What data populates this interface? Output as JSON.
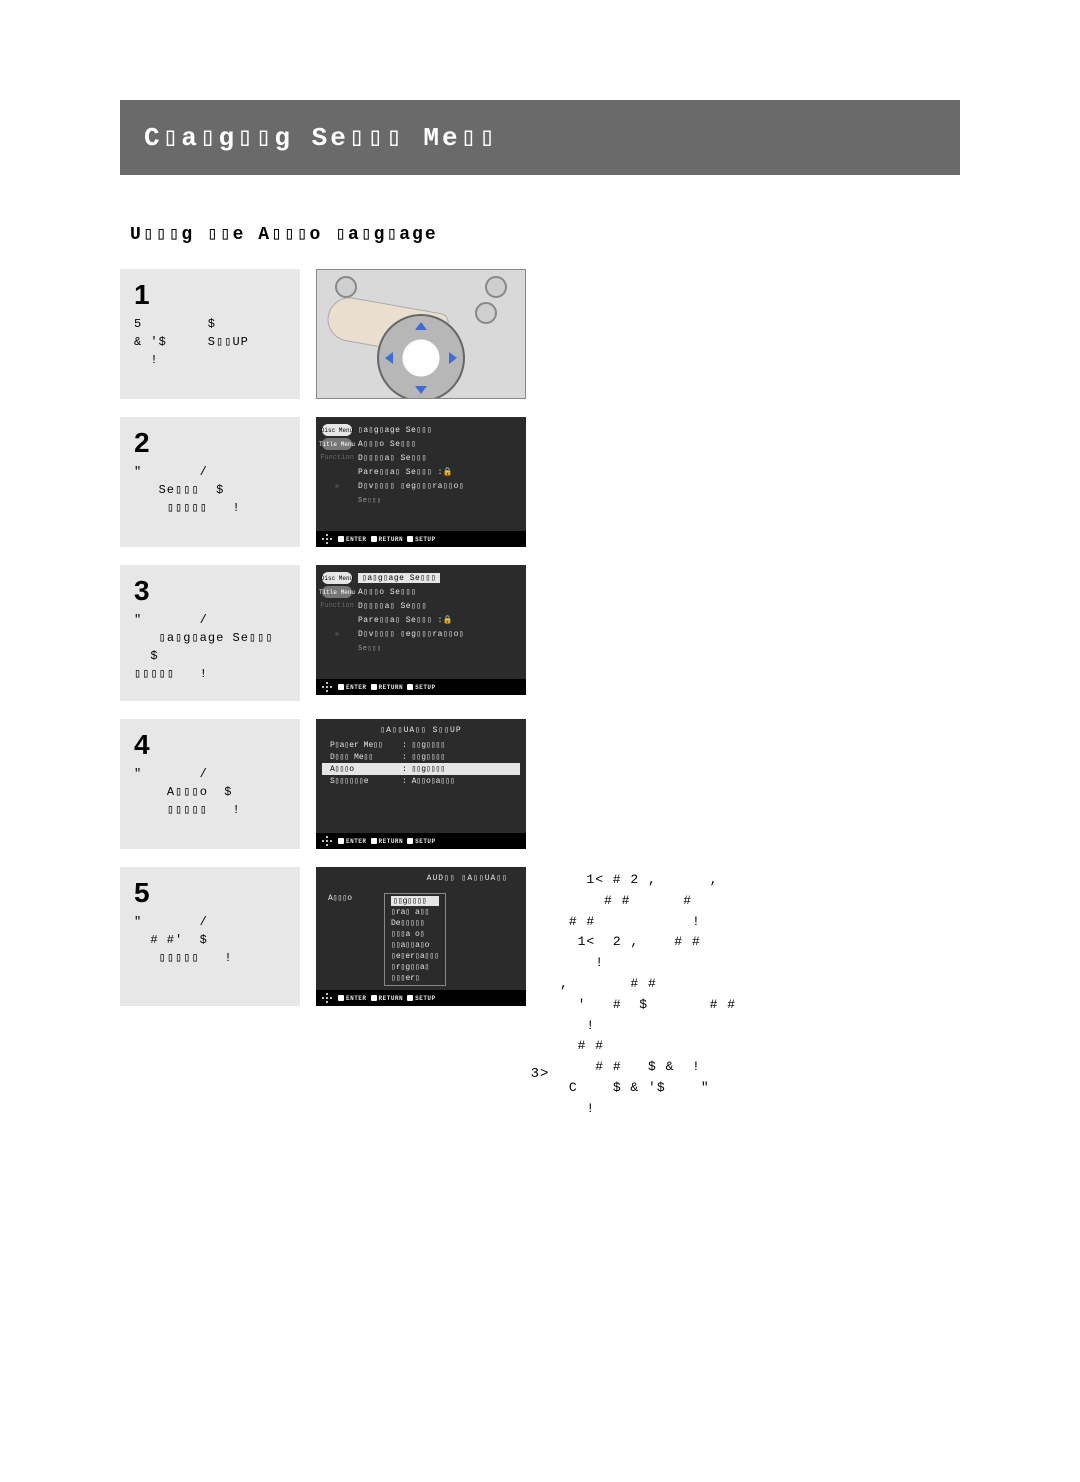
{
  "colors": {
    "titlebar_bg": "#6a6a6a",
    "titlebar_fg": "#ffffff",
    "panel_bg": "#e7e7e7",
    "osd_bg": "#2b2b2b",
    "osd_fg": "#e6e6e6",
    "osd_foot_bg": "#000000",
    "highlight_bg": "#e6e6e6",
    "highlight_fg": "#000000",
    "remote_bg": "#d9d9d9",
    "arrow_blue": "#3b6fd6"
  },
  "title": "C▯a▯g▯▯g Se▯▯▯ Me▯▯",
  "subtitle": "U▯▯▯g ▯▯e A▯▯▯o ▯a▯g▯age",
  "osd_footer": {
    "enter": "ENTER",
    "return": "RETURN",
    "setup": "SETUP"
  },
  "osd_side_labels": {
    "disc_menu": "Disc Menu",
    "title_menu": "Title Menu",
    "function": "Function",
    "setup_gear": "Se▯▯▯"
  },
  "setup_menu_items": {
    "language": "▯a▯g▯age Se▯▯▯",
    "audio": "A▯▯▯o Se▯▯▯",
    "display": "D▯▯▯▯a▯ Se▯▯▯",
    "parental": "Pare▯▯a▯ Se▯▯▯ :🔒",
    "divx": "D▯v▯▯▯▯ ▯eg▯▯▯ra▯▯o▯"
  },
  "language_setup": {
    "header": "▯A▯▯UA▯▯ S▯▯UP",
    "player_menu_k": "P▯a▯er Me▯▯",
    "disc_menu_k": "D▯▯▯ Me▯▯",
    "audio_k": "A▯▯▯o",
    "subtitle_k": "S▯▯▯▯▯▯e",
    "english_v": "▯▯g▯▯▯▯",
    "automatic_v": "A▯▯o▯a▯▯▯"
  },
  "audio_lang": {
    "header": "AUD▯▯ ▯A▯▯UA▯▯",
    "label": "A▯▯▯o",
    "options": [
      "▯▯g▯▯▯▯",
      "▯ra▯ a▯▯",
      "De▯▯▯▯▯",
      "▯▯▯a o▯",
      "▯▯a▯▯a▯o",
      "▯e▯er▯a▯▯▯",
      "▯r▯g▯▯a▯",
      "▯▯▯er▯"
    ],
    "selected_index": 0
  },
  "steps": [
    {
      "num": "1",
      "text": "5        $\n& '$     S▯▯UP\n  !"
    },
    {
      "num": "2",
      "text": "\"       /\n   Se▯▯▯  $\n    ▯▯▯▯▯   !"
    },
    {
      "num": "3",
      "text": "\"       /\n   ▯a▯g▯age Se▯▯▯\n  $\n▯▯▯▯▯   !"
    },
    {
      "num": "4",
      "text": "\"       /\n    A▯▯▯o  $\n    ▯▯▯▯▯   !"
    },
    {
      "num": "5",
      "text": "\"       /\n  # #'  $\n   ▯▯▯▯▯   !"
    }
  ],
  "notes": "   1< # 2 ,      ,\n     # #      #\n # #           !\n  1<  2 ,    # #\n    !\n,       # #\n  '   #  $       # #\n   !\n  # #\n    # #   $ &  !\n C    $ & '$    \"\n   !",
  "page_number": "3>"
}
